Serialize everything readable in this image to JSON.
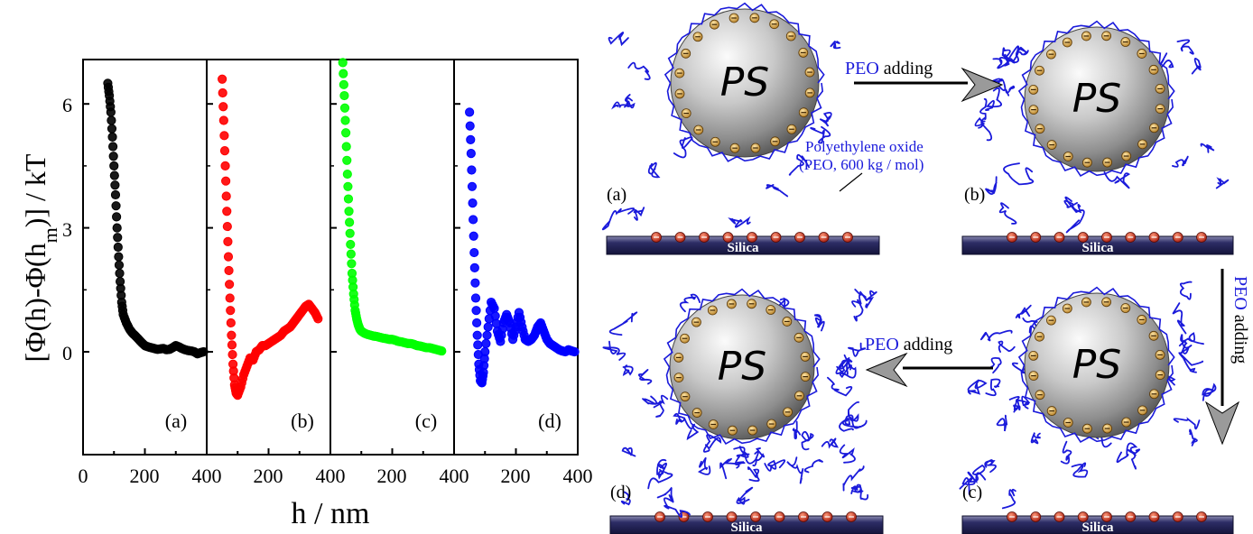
{
  "chart_data": {
    "type": "scatter",
    "ylabel": "[Φ(h)-Φ(hm)] / kT",
    "xlabel": "h / nm",
    "ylim": [
      -2.5,
      7
    ],
    "xlim": [
      0,
      400
    ],
    "yticks": [
      "0",
      "3",
      "6"
    ],
    "xticks": [
      "0",
      "200",
      "400"
    ],
    "panels": [
      {
        "label": "(a)",
        "color": "#000000",
        "x": [
          80,
          85,
          90,
          95,
          100,
          105,
          110,
          115,
          120,
          125,
          130,
          140,
          150,
          160,
          170,
          180,
          190,
          200,
          210,
          220,
          230,
          240,
          250,
          260,
          270,
          280,
          290,
          300,
          310,
          320,
          330,
          340,
          350,
          360,
          370,
          380,
          390
        ],
        "y": [
          6.5,
          6.2,
          5.8,
          5.2,
          4.5,
          3.8,
          3.0,
          2.3,
          1.7,
          1.2,
          0.9,
          0.7,
          0.55,
          0.45,
          0.38,
          0.3,
          0.22,
          0.15,
          0.12,
          0.1,
          0.08,
          0.06,
          0.07,
          0.08,
          0.05,
          0.06,
          0.1,
          0.15,
          0.12,
          0.08,
          0.05,
          0.03,
          0.02,
          0.0,
          -0.05,
          -0.02,
          0.0
        ]
      },
      {
        "label": "(b)",
        "color": "#ff0000",
        "x": [
          50,
          55,
          60,
          65,
          70,
          75,
          80,
          85,
          90,
          95,
          100,
          110,
          120,
          130,
          140,
          150,
          160,
          170,
          180,
          190,
          200,
          210,
          220,
          230,
          240,
          250,
          260,
          270,
          280,
          290,
          300,
          310,
          320,
          330,
          340,
          350,
          360
        ],
        "y": [
          6.6,
          5.6,
          4.5,
          3.4,
          2.3,
          1.3,
          0.4,
          -0.3,
          -0.8,
          -1.0,
          -1.05,
          -0.85,
          -0.55,
          -0.35,
          -0.15,
          -0.2,
          0.0,
          0.05,
          0.15,
          0.15,
          0.2,
          0.25,
          0.3,
          0.35,
          0.4,
          0.5,
          0.55,
          0.6,
          0.7,
          0.8,
          0.9,
          1.0,
          1.1,
          1.15,
          1.05,
          0.95,
          0.8
        ]
      },
      {
        "label": "(c)",
        "color": "#00ff00",
        "x": [
          40,
          45,
          50,
          55,
          60,
          65,
          70,
          75,
          80,
          85,
          90,
          95,
          100,
          110,
          120,
          130,
          140,
          150,
          160,
          170,
          180,
          190,
          200,
          210,
          220,
          230,
          240,
          250,
          260,
          270,
          280,
          290,
          300,
          310,
          320,
          330,
          340,
          350,
          360
        ],
        "y": [
          7.0,
          6.2,
          5.3,
          4.3,
          3.4,
          2.6,
          1.9,
          1.4,
          1.0,
          0.8,
          0.65,
          0.55,
          0.5,
          0.45,
          0.42,
          0.4,
          0.38,
          0.37,
          0.35,
          0.33,
          0.32,
          0.3,
          0.3,
          0.28,
          0.25,
          0.24,
          0.22,
          0.2,
          0.2,
          0.18,
          0.15,
          0.14,
          0.12,
          0.1,
          0.1,
          0.08,
          0.06,
          0.04,
          0.02
        ]
      },
      {
        "label": "(d)",
        "color": "#0000ff",
        "x": [
          50,
          55,
          60,
          65,
          70,
          75,
          80,
          85,
          90,
          95,
          100,
          110,
          120,
          130,
          140,
          150,
          160,
          170,
          180,
          190,
          200,
          210,
          220,
          230,
          240,
          250,
          260,
          270,
          280,
          290,
          300,
          310,
          320,
          330,
          340,
          350,
          360,
          370,
          380,
          390
        ],
        "y": [
          5.8,
          4.8,
          3.6,
          2.4,
          1.3,
          0.4,
          -0.3,
          -0.7,
          -0.75,
          -0.5,
          0.0,
          0.6,
          1.2,
          1.05,
          0.5,
          0.25,
          0.7,
          0.9,
          0.7,
          0.3,
          0.6,
          0.95,
          0.6,
          0.3,
          0.25,
          0.3,
          0.4,
          0.6,
          0.7,
          0.5,
          0.3,
          0.2,
          0.15,
          0.1,
          0.05,
          0.02,
          0.0,
          0.05,
          0.02,
          0.0
        ]
      }
    ]
  },
  "schematic": {
    "particle_label": "PS",
    "substrate_label": "Silica",
    "arrow_text_colored": "PEO",
    "arrow_text_rest": " adding",
    "vertical_arrow_text": "PEO adding",
    "polymer_note_line1": "Polyethylene oxide",
    "polymer_note_line2": "(PEO, 600 kg / mol)",
    "panel_labels": [
      "(a)",
      "(b)",
      "(c)",
      "(d)"
    ],
    "colors": {
      "polymer": "#1a1adb",
      "substrate": "#23235a",
      "arrow": "#888888"
    }
  }
}
